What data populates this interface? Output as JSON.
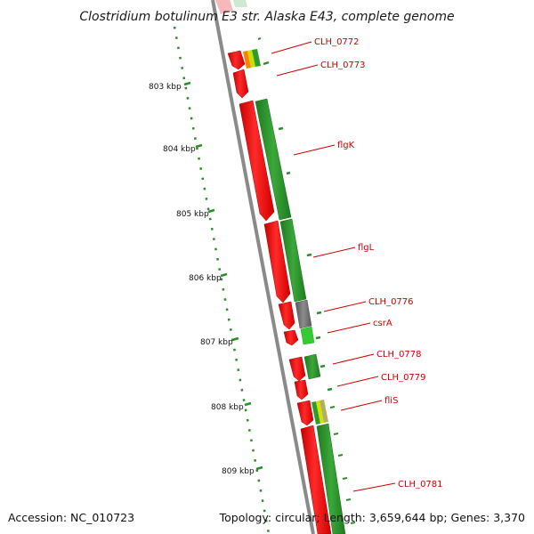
{
  "title": "Clostridium botulinum E3 str. Alaska E43, complete genome",
  "footer": {
    "accession": "Accession: NC_010723",
    "summary": "Topology: circular; Length: 3,659,644 bp; Genes: 3,370"
  },
  "ruler": {
    "ticks": [
      {
        "label": "803 kbp",
        "kbp": 803
      },
      {
        "label": "804 kbp",
        "kbp": 804
      },
      {
        "label": "805 kbp",
        "kbp": 805
      },
      {
        "label": "806 kbp",
        "kbp": 806
      },
      {
        "label": "807 kbp",
        "kbp": 807
      },
      {
        "label": "808 kbp",
        "kbp": 808
      },
      {
        "label": "809 kbp",
        "kbp": 809
      }
    ]
  },
  "gene_labels": [
    {
      "name": "CLH_0772"
    },
    {
      "name": "CLH_0773"
    },
    {
      "name": "flgK"
    },
    {
      "name": "flgL"
    },
    {
      "name": "CLH_0776"
    },
    {
      "name": "csrA"
    },
    {
      "name": "CLH_0778"
    },
    {
      "name": "CLH_0779"
    },
    {
      "name": "fliS"
    },
    {
      "name": "CLH_0781"
    }
  ],
  "colors": {
    "forward_gene": "#ff0000",
    "function_green": "#2e8b2e",
    "function_gray": "#777777",
    "function_light_green": "#33cc33",
    "backbone": "#888888",
    "label": "#cc0000",
    "tick": "#2e8b2e"
  }
}
